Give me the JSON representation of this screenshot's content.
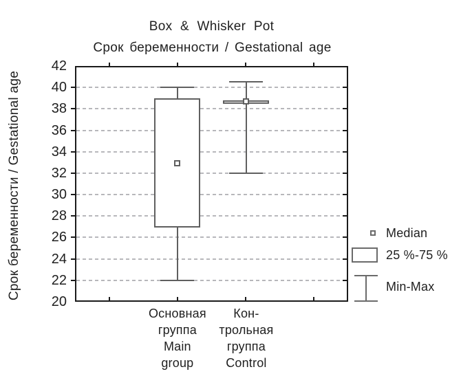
{
  "chart_data": {
    "type": "box",
    "title": "Box & Whisker Pot",
    "subtitle": "Срок беременности / Gestational age",
    "ylabel": "Срок беременности / Gestational age",
    "xlabel": "",
    "ylim": [
      20,
      42
    ],
    "yticks": [
      20,
      22,
      24,
      26,
      28,
      30,
      32,
      34,
      36,
      38,
      40,
      42
    ],
    "grid": "horizontal-dashed",
    "legend_position": "right",
    "groups": [
      {
        "label_lines": [
          "Основная",
          "группа",
          "Main",
          "group"
        ],
        "min": 22,
        "q1": 26.9,
        "median": 32.9,
        "q3": 39,
        "max": 40
      },
      {
        "label_lines": [
          "Кон-",
          "трольная",
          "группа",
          "Control"
        ],
        "min": 32,
        "q1": 38.6,
        "median": 38.7,
        "q3": 38.8,
        "max": 40.5
      }
    ],
    "legend": [
      {
        "icon": "median-square-icon",
        "label": "Median"
      },
      {
        "icon": "percentile-box-icon",
        "label": "25 %-75 %"
      },
      {
        "icon": "min-max-whisker-icon",
        "label": "Min-Max"
      }
    ],
    "colors": {
      "box_stroke": "#5f5f5f",
      "frame": "#1a1a1a",
      "grid": "#b7b7bb",
      "text": "#1f1f1f",
      "background": "#ffffff"
    }
  }
}
